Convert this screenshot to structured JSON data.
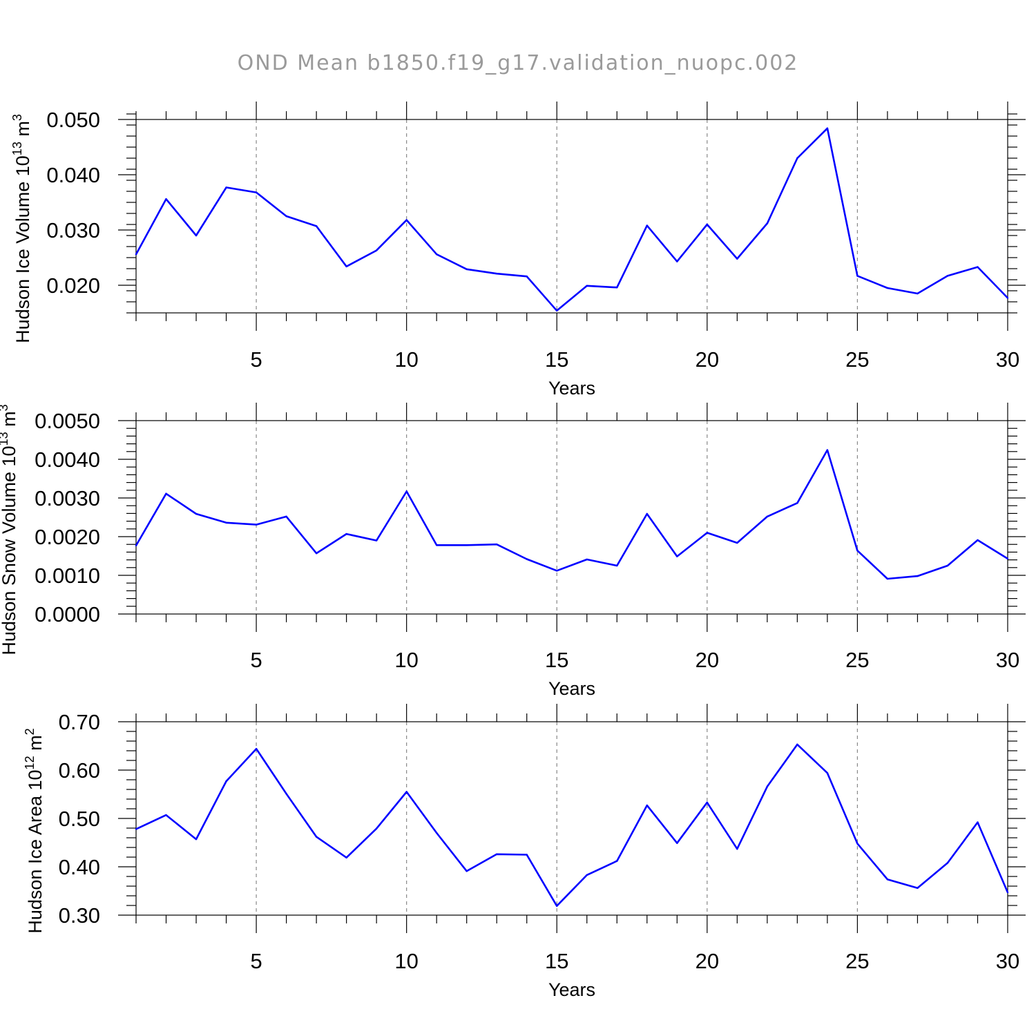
{
  "chart_data": {
    "title": "OND Mean b1850.f19_g17.validation_nuopc.002",
    "type": "line",
    "panels": [
      {
        "id": "ice-volume",
        "type": "line",
        "ylabel_main": "Hudson Ice Volume 10",
        "ylabel_exp": "13",
        "ylabel_unit": " m",
        "ylabel_unit_exp": "3",
        "xlabel": "Years",
        "xlim": [
          1,
          30
        ],
        "ylim": [
          0.015,
          0.05
        ],
        "yticks": [
          0.02,
          0.03,
          0.04,
          0.05
        ],
        "ytick_labels": [
          "0.020",
          "0.030",
          "0.040",
          "0.050"
        ],
        "yminor_step": 0.002,
        "xticks": [
          5,
          10,
          15,
          20,
          25,
          30
        ],
        "xtick_labels": [
          "5",
          "10",
          "15",
          "20",
          "25",
          "30"
        ],
        "color": "#0000ff",
        "x": [
          1,
          2,
          3,
          4,
          5,
          6,
          7,
          8,
          9,
          10,
          11,
          12,
          13,
          14,
          15,
          16,
          17,
          18,
          19,
          20,
          21,
          22,
          23,
          24,
          25,
          26,
          27,
          28,
          29,
          30
        ],
        "values": [
          0.0256,
          0.0356,
          0.029,
          0.0377,
          0.0368,
          0.0325,
          0.0307,
          0.0234,
          0.0263,
          0.0318,
          0.0256,
          0.0229,
          0.0221,
          0.0216,
          0.0154,
          0.0199,
          0.0196,
          0.0308,
          0.0243,
          0.031,
          0.0248,
          0.0312,
          0.043,
          0.0484,
          0.0217,
          0.0195,
          0.0185,
          0.0217,
          0.0233,
          0.0177
        ]
      },
      {
        "id": "snow-volume",
        "type": "line",
        "ylabel_main": "Hudson Snow Volume 10",
        "ylabel_exp": "13",
        "ylabel_unit": " m",
        "ylabel_unit_exp": "3",
        "xlabel": "Years",
        "xlim": [
          1,
          30
        ],
        "ylim": [
          0.0,
          0.005
        ],
        "yticks": [
          0.0,
          0.001,
          0.002,
          0.003,
          0.004,
          0.005
        ],
        "ytick_labels": [
          "0.0000",
          "0.0010",
          "0.0020",
          "0.0030",
          "0.0040",
          "0.0050"
        ],
        "yminor_step": 0.0002,
        "xticks": [
          5,
          10,
          15,
          20,
          25,
          30
        ],
        "xtick_labels": [
          "5",
          "10",
          "15",
          "20",
          "25",
          "30"
        ],
        "color": "#0000ff",
        "x": [
          1,
          2,
          3,
          4,
          5,
          6,
          7,
          8,
          9,
          10,
          11,
          12,
          13,
          14,
          15,
          16,
          17,
          18,
          19,
          20,
          21,
          22,
          23,
          24,
          25,
          26,
          27,
          28,
          29,
          30
        ],
        "values": [
          0.00177,
          0.00311,
          0.00259,
          0.00236,
          0.00231,
          0.00252,
          0.00157,
          0.00207,
          0.0019,
          0.00317,
          0.00178,
          0.00178,
          0.0018,
          0.00142,
          0.00112,
          0.00141,
          0.00125,
          0.00259,
          0.00149,
          0.0021,
          0.00184,
          0.00252,
          0.00287,
          0.00424,
          0.00164,
          0.00091,
          0.00098,
          0.00125,
          0.00191,
          0.00143
        ]
      },
      {
        "id": "ice-area",
        "type": "line",
        "ylabel_main": "Hudson Ice Area 10",
        "ylabel_exp": "12",
        "ylabel_unit": " m",
        "ylabel_unit_exp": "2",
        "xlabel": "Years",
        "xlim": [
          1,
          30
        ],
        "ylim": [
          0.3,
          0.7
        ],
        "yticks": [
          0.3,
          0.4,
          0.5,
          0.6,
          0.7
        ],
        "ytick_labels": [
          "0.30",
          "0.40",
          "0.50",
          "0.60",
          "0.70"
        ],
        "yminor_step": 0.02,
        "xticks": [
          5,
          10,
          15,
          20,
          25,
          30
        ],
        "xtick_labels": [
          "5",
          "10",
          "15",
          "20",
          "25",
          "30"
        ],
        "color": "#0000ff",
        "x": [
          1,
          2,
          3,
          4,
          5,
          6,
          7,
          8,
          9,
          10,
          11,
          12,
          13,
          14,
          15,
          16,
          17,
          18,
          19,
          20,
          21,
          22,
          23,
          24,
          25,
          26,
          27,
          28,
          29,
          30
        ],
        "values": [
          0.478,
          0.507,
          0.457,
          0.577,
          0.644,
          0.551,
          0.462,
          0.419,
          0.479,
          0.555,
          0.47,
          0.391,
          0.426,
          0.425,
          0.319,
          0.383,
          0.412,
          0.527,
          0.449,
          0.533,
          0.437,
          0.566,
          0.653,
          0.594,
          0.448,
          0.374,
          0.356,
          0.408,
          0.492,
          0.347
        ]
      }
    ]
  }
}
